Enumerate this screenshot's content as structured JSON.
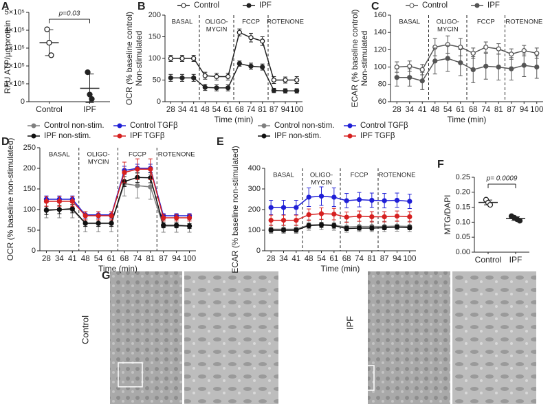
{
  "chart_data": [
    {
      "type": "dot",
      "panel": "A",
      "ylabel": [
        "RFU ATP/µg protein"
      ],
      "ylim": [
        0,
        500000
      ],
      "yticks": [
        0,
        {
          "value": 100000,
          "label": "1×10⁵"
        },
        {
          "value": 200000,
          "label": "2×10⁵"
        },
        {
          "value": 300000,
          "label": "3×10⁵"
        },
        {
          "value": 400000,
          "label": "4×10⁵"
        },
        {
          "value": 500000,
          "label": "5×10⁵"
        }
      ],
      "groups": [
        {
          "name": "Control",
          "values": [
            405000,
            330000,
            260000
          ],
          "mean": 330000,
          "sd": 72000,
          "marker": "open"
        },
        {
          "name": "IPF",
          "values": [
            165000,
            40000,
            15000
          ],
          "mean": 75000,
          "sd": 80000,
          "marker": "filled"
        }
      ],
      "annotation": "p=0.03"
    },
    {
      "type": "line",
      "panel": "B",
      "ylabel": [
        "OCR (% baseline control)",
        "Non-stimulated"
      ],
      "xlabel": "Time (min)",
      "categories": [
        "28",
        "34",
        "41",
        "48",
        "54",
        "61",
        "68",
        "74",
        "81",
        "87",
        "94",
        "100"
      ],
      "ylim": [
        0,
        200
      ],
      "yticks": [
        0,
        50,
        100,
        150,
        200
      ],
      "phases": [
        [
          "BASAL"
        ],
        [
          "OLIGO-",
          "MYCIN"
        ],
        [
          "FCCP"
        ],
        [
          "ROTENONE"
        ]
      ],
      "series": [
        {
          "name": "Control",
          "color": "#222222",
          "marker": "open",
          "values": [
            100,
            100,
            100,
            60,
            58,
            58,
            160,
            148,
            140,
            50,
            50,
            50
          ],
          "errors": [
            7,
            7,
            7,
            8,
            8,
            8,
            8,
            10,
            10,
            8,
            7,
            8
          ]
        },
        {
          "name": "IPF",
          "color": "#222222",
          "marker": "filled",
          "values": [
            55,
            55,
            55,
            33,
            32,
            32,
            88,
            82,
            80,
            26,
            25,
            25
          ],
          "errors": [
            8,
            8,
            8,
            7,
            7,
            7,
            6,
            7,
            7,
            5,
            5,
            5
          ]
        }
      ]
    },
    {
      "type": "line",
      "panel": "C",
      "ylabel": [
        "ECAR (% baseline control)",
        "Non-stimulated"
      ],
      "xlabel": "Time (min)",
      "categories": [
        "28",
        "34",
        "41",
        "48",
        "54",
        "61",
        "68",
        "74",
        "81",
        "87",
        "94",
        "100"
      ],
      "ylim": [
        60,
        160
      ],
      "yticks": [
        60,
        80,
        100,
        120,
        140,
        160
      ],
      "phases": [
        [
          "BASAL"
        ],
        [
          "OLIGO-",
          "MYCIN"
        ],
        [
          "FCCP"
        ],
        [
          "ROTENONE"
        ]
      ],
      "series": [
        {
          "name": "Control",
          "color": "#555555",
          "marker": "open",
          "values": [
            100,
            101,
            97,
            123,
            126,
            123,
            116,
            123,
            121,
            115,
            119,
            116
          ],
          "errors": [
            6,
            6,
            6,
            10,
            10,
            10,
            6,
            6,
            6,
            6,
            6,
            6
          ]
        },
        {
          "name": "IPF",
          "color": "#555555",
          "marker": "filled",
          "values": [
            88,
            88,
            84,
            107,
            110,
            105,
            97,
            101,
            100,
            98,
            102,
            100
          ],
          "errors": [
            10,
            10,
            10,
            15,
            15,
            15,
            15,
            15,
            15,
            13,
            13,
            13
          ]
        }
      ]
    },
    {
      "type": "line",
      "panel": "D",
      "ylabel": [
        "OCR (% baseline non-stimulated)"
      ],
      "xlabel": "Time (min)",
      "categories": [
        "28",
        "34",
        "41",
        "48",
        "54",
        "61",
        "68",
        "74",
        "81",
        "87",
        "94",
        "100"
      ],
      "ylim": [
        0,
        250
      ],
      "yticks": [
        0,
        50,
        100,
        150,
        200,
        250
      ],
      "phases": [
        [
          "BASAL"
        ],
        [
          "OLIGO-",
          "MYCIN"
        ],
        [
          "FCCP"
        ],
        [
          "ROTENONE"
        ]
      ],
      "series": [
        {
          "name": "Control non-stim.",
          "color": "#808080",
          "marker": "filled",
          "values": [
            100,
            100,
            100,
            66,
            66,
            66,
            163,
            158,
            155,
            60,
            60,
            60
          ],
          "errors": [
            20,
            20,
            20,
            20,
            20,
            20,
            30,
            30,
            30,
            15,
            15,
            15
          ]
        },
        {
          "name": "Control TGFβ",
          "color": "#1f1fd6",
          "marker": "filled",
          "values": [
            125,
            125,
            125,
            87,
            87,
            87,
            195,
            200,
            200,
            85,
            85,
            85
          ],
          "errors": [
            8,
            8,
            8,
            8,
            8,
            8,
            10,
            10,
            10,
            5,
            5,
            5
          ]
        },
        {
          "name": "IPF non-stim.",
          "color": "#111111",
          "marker": "filled",
          "values": [
            98,
            100,
            102,
            67,
            67,
            67,
            168,
            178,
            177,
            62,
            62,
            60
          ],
          "errors": [
            10,
            10,
            10,
            8,
            8,
            8,
            12,
            12,
            12,
            6,
            6,
            6
          ]
        },
        {
          "name": "IPF TGFβ",
          "color": "#d62020",
          "marker": "filled",
          "values": [
            120,
            120,
            120,
            85,
            85,
            85,
            190,
            198,
            198,
            80,
            80,
            80
          ],
          "errors": [
            12,
            12,
            12,
            10,
            10,
            10,
            25,
            25,
            25,
            8,
            8,
            8
          ]
        }
      ]
    },
    {
      "type": "line",
      "panel": "E",
      "ylabel": [
        "ECAR (% baseline non-stimulated)"
      ],
      "xlabel": "Time (min)",
      "categories": [
        "28",
        "34",
        "41",
        "48",
        "54",
        "61",
        "68",
        "74",
        "81",
        "87",
        "94",
        "100"
      ],
      "ylim": [
        0,
        400
      ],
      "yticks": [
        0,
        100,
        200,
        300,
        400
      ],
      "phases": [
        [
          "BASAL"
        ],
        [
          "OLIGO-",
          "MYCIN"
        ],
        [
          "FCCP"
        ],
        [
          "ROTENONE"
        ]
      ],
      "series": [
        {
          "name": "Control non-stim.",
          "color": "#808080",
          "marker": "filled",
          "values": [
            105,
            105,
            105,
            125,
            128,
            125,
            115,
            118,
            118,
            118,
            120,
            118
          ],
          "errors": [
            20,
            20,
            20,
            25,
            25,
            25,
            25,
            25,
            25,
            25,
            25,
            25
          ]
        },
        {
          "name": "Control TGFβ",
          "color": "#1f1fd6",
          "marker": "filled",
          "values": [
            210,
            210,
            210,
            260,
            265,
            260,
            243,
            248,
            245,
            243,
            245,
            240
          ],
          "errors": [
            35,
            35,
            35,
            45,
            45,
            45,
            35,
            35,
            35,
            35,
            35,
            35
          ]
        },
        {
          "name": "IPF non-stim.",
          "color": "#111111",
          "marker": "filled",
          "values": [
            100,
            100,
            100,
            122,
            125,
            122,
            108,
            110,
            110,
            112,
            115,
            112
          ],
          "errors": [
            10,
            10,
            10,
            12,
            12,
            12,
            10,
            10,
            10,
            10,
            10,
            10
          ]
        },
        {
          "name": "IPF TGFβ",
          "color": "#d62020",
          "marker": "filled",
          "values": [
            148,
            148,
            148,
            175,
            180,
            178,
            163,
            168,
            165,
            165,
            168,
            165
          ],
          "errors": [
            25,
            25,
            25,
            28,
            28,
            28,
            25,
            25,
            25,
            25,
            25,
            25
          ]
        }
      ]
    },
    {
      "type": "dot",
      "panel": "F",
      "ylabel": [
        "MTG/DAPI"
      ],
      "ylim": [
        0,
        0.25
      ],
      "yticks": [
        {
          "value": 0,
          "label": "0.00"
        },
        {
          "value": 0.05,
          "label": "0.05"
        },
        {
          "value": 0.1,
          "label": "0.10"
        },
        {
          "value": 0.15,
          "label": "0.15"
        },
        {
          "value": 0.2,
          "label": "0.20"
        },
        {
          "value": 0.25,
          "label": "0.25"
        }
      ],
      "groups": [
        {
          "name": "Control",
          "values": [
            0.175,
            0.165,
            0.158
          ],
          "mean": 0.166,
          "sd": 0.008,
          "marker": "open"
        },
        {
          "name": "IPF",
          "values": [
            0.12,
            0.115,
            0.11,
            0.105
          ],
          "mean": 0.112,
          "sd": 0.006,
          "marker": "filled"
        }
      ],
      "annotation": "p= 0.0009"
    }
  ],
  "figure_g": {
    "panel": "G",
    "rows": [
      "Control",
      "IPF"
    ]
  }
}
